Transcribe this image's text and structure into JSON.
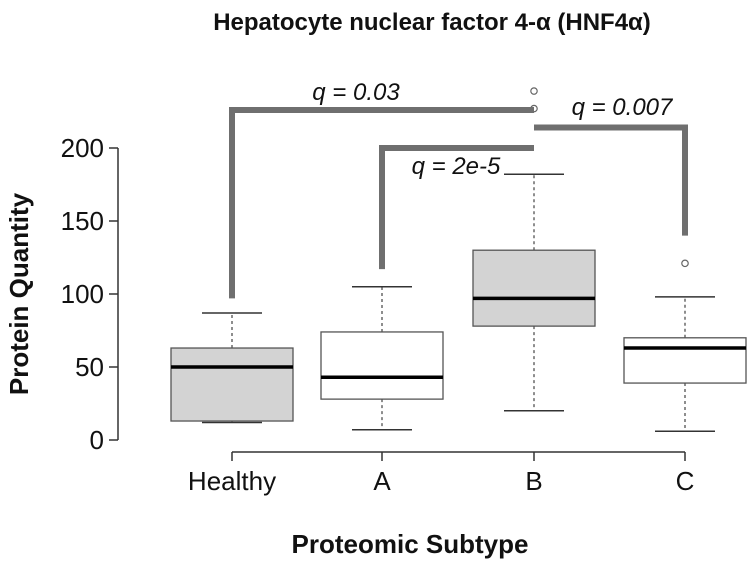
{
  "chart_data": {
    "type": "box",
    "title": "Hepatocyte nuclear factor 4-α (HNF4α)",
    "xlabel": "Proteomic Subtype",
    "ylabel": "Protein Quantity",
    "ylim": [
      0,
      240
    ],
    "yticks": [
      0,
      50,
      100,
      150,
      200
    ],
    "categories": [
      "Healthy",
      "A",
      "B",
      "C"
    ],
    "boxes": [
      {
        "category": "Healthy",
        "whisker_low": 12,
        "q1": 13,
        "median": 50,
        "q3": 63,
        "whisker_high": 87,
        "outliers": [],
        "fill": "#d3d3d3"
      },
      {
        "category": "A",
        "whisker_low": 7,
        "q1": 28,
        "median": 43,
        "q3": 74,
        "whisker_high": 105,
        "outliers": [],
        "fill": "#ffffff"
      },
      {
        "category": "B",
        "whisker_low": 20,
        "q1": 78,
        "median": 97,
        "q3": 130,
        "whisker_high": 182,
        "outliers": [
          227,
          239
        ],
        "fill": "#d3d3d3"
      },
      {
        "category": "C",
        "whisker_low": 6,
        "q1": 39,
        "median": 63,
        "q3": 70,
        "whisker_high": 98,
        "outliers": [
          121
        ],
        "fill": "#ffffff"
      }
    ],
    "annotations": [
      {
        "from": "Healthy",
        "to": "B",
        "from_y": 97,
        "to_y": 226,
        "bar_y": 226,
        "label": "q = 0.03"
      },
      {
        "from": "A",
        "to": "B",
        "from_y": 117,
        "to_y": 200,
        "bar_y": 200,
        "label": "q = 2e-5"
      },
      {
        "from": "B",
        "to": "C",
        "from_y": 214,
        "to_y": 140,
        "bar_y": 214,
        "label": "q = 0.007"
      }
    ]
  }
}
